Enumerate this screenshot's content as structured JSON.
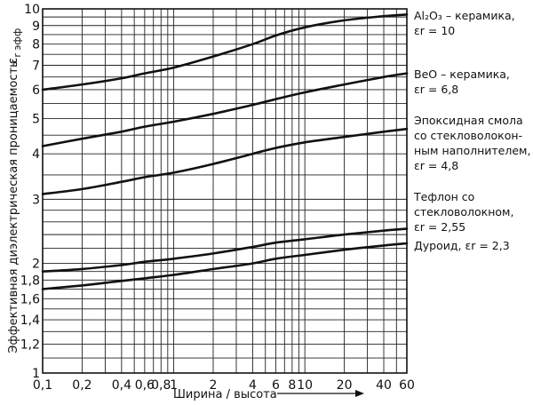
{
  "chart_data": {
    "type": "line",
    "title": "",
    "xlabel": "Ширина / высота",
    "ylabel_main": "Эффективная диэлектрическая проницаемость",
    "ylabel_symbol_base": "ε",
    "ylabel_symbol_sub": "r эфф",
    "x_scale": "log",
    "y_scale": "log",
    "xlim": [
      0.1,
      60
    ],
    "ylim": [
      1,
      10
    ],
    "grid": true,
    "x_ticks": [
      {
        "value": 0.1,
        "label": "0,1"
      },
      {
        "value": 0.2,
        "label": "0,2"
      },
      {
        "value": 0.4,
        "label": "0,4"
      },
      {
        "value": 0.6,
        "label": "0,6"
      },
      {
        "value": 0.8,
        "label": "0,8"
      },
      {
        "value": 1,
        "label": "1"
      },
      {
        "value": 2,
        "label": "2"
      },
      {
        "value": 4,
        "label": "4"
      },
      {
        "value": 6,
        "label": "6"
      },
      {
        "value": 8,
        "label": "8"
      },
      {
        "value": 10,
        "label": "10"
      },
      {
        "value": 20,
        "label": "20"
      },
      {
        "value": 40,
        "label": "40"
      },
      {
        "value": 60,
        "label": "60"
      }
    ],
    "x_grid": [
      0.1,
      0.2,
      0.3,
      0.4,
      0.5,
      0.6,
      0.7,
      0.8,
      0.9,
      1,
      2,
      3,
      4,
      5,
      6,
      7,
      8,
      9,
      10,
      20,
      30,
      40,
      50,
      60
    ],
    "y_ticks": [
      {
        "value": 1,
        "label": "1"
      },
      {
        "value": 1.2,
        "label": "1,2"
      },
      {
        "value": 1.4,
        "label": "1,4"
      },
      {
        "value": 1.6,
        "label": "1,6"
      },
      {
        "value": 1.8,
        "label": "1,8"
      },
      {
        "value": 2,
        "label": "2"
      },
      {
        "value": 3,
        "label": "3"
      },
      {
        "value": 4,
        "label": "4"
      },
      {
        "value": 5,
        "label": "5"
      },
      {
        "value": 6,
        "label": "6"
      },
      {
        "value": 7,
        "label": "7"
      },
      {
        "value": 8,
        "label": "8"
      },
      {
        "value": 9,
        "label": "9"
      },
      {
        "value": 10,
        "label": "10"
      }
    ],
    "y_grid": [
      1,
      1.1,
      1.2,
      1.3,
      1.4,
      1.5,
      1.6,
      1.7,
      1.8,
      1.9,
      2,
      2.2,
      2.4,
      2.6,
      2.8,
      3,
      3.5,
      4,
      4.5,
      5,
      5.5,
      6,
      6.5,
      7,
      7.5,
      8,
      8.5,
      9,
      9.5,
      10
    ],
    "series": [
      {
        "label_lines": [
          "Al₂O₃ – керамика,",
          "εr = 10"
        ],
        "x": [
          0.1,
          0.2,
          0.4,
          0.6,
          1,
          2,
          4,
          6,
          10,
          20,
          40,
          60
        ],
        "y": [
          6.0,
          6.2,
          6.45,
          6.65,
          6.9,
          7.4,
          8.0,
          8.45,
          8.9,
          9.3,
          9.55,
          9.65
        ]
      },
      {
        "label_lines": [
          "BeO – керамика,",
          "εr = 6,8"
        ],
        "x": [
          0.1,
          0.2,
          0.4,
          0.6,
          1,
          2,
          4,
          6,
          10,
          20,
          40,
          60
        ],
        "y": [
          4.2,
          4.4,
          4.6,
          4.75,
          4.9,
          5.15,
          5.45,
          5.65,
          5.9,
          6.2,
          6.5,
          6.65
        ]
      },
      {
        "label_lines": [
          "Эпоксидная смола",
          "со стекловолокон-",
          "ным наполнителем,",
          "εr = 4,8"
        ],
        "x": [
          0.1,
          0.2,
          0.4,
          0.6,
          1,
          2,
          4,
          6,
          10,
          20,
          40,
          60
        ],
        "y": [
          3.1,
          3.2,
          3.35,
          3.45,
          3.55,
          3.75,
          4.0,
          4.15,
          4.3,
          4.45,
          4.6,
          4.68
        ]
      },
      {
        "label_lines": [
          "Тефлон со",
          "стекловолокном,",
          "εr = 2,55"
        ],
        "x": [
          0.1,
          0.2,
          0.4,
          0.6,
          1,
          2,
          4,
          6,
          10,
          20,
          40,
          60
        ],
        "y": [
          1.9,
          1.93,
          1.98,
          2.02,
          2.06,
          2.13,
          2.22,
          2.28,
          2.33,
          2.4,
          2.46,
          2.49
        ]
      },
      {
        "label_lines": [
          "Дуроид, εr = 2,3"
        ],
        "x": [
          0.1,
          0.2,
          0.4,
          0.6,
          1,
          2,
          4,
          6,
          10,
          20,
          40,
          60
        ],
        "y": [
          1.7,
          1.74,
          1.79,
          1.82,
          1.86,
          1.93,
          2.0,
          2.06,
          2.11,
          2.18,
          2.24,
          2.27
        ]
      }
    ]
  }
}
